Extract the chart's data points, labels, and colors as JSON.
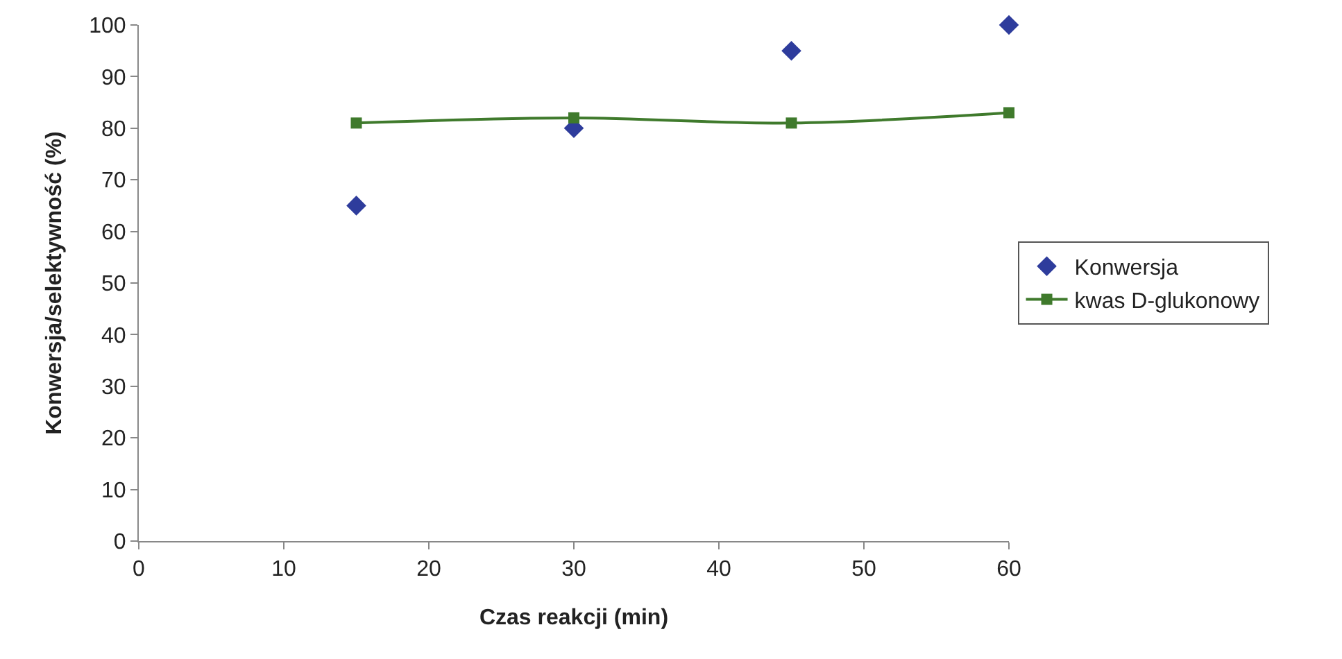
{
  "chart_data": {
    "type": "scatter",
    "xlabel": "Czas reakcji (min)",
    "ylabel": "Konwersja/selektywność (%)",
    "x": [
      15,
      30,
      45,
      60
    ],
    "series": [
      {
        "name": "Konwersja",
        "marker": "diamond",
        "color": "#2e3c9c",
        "values": [
          65,
          80,
          95,
          100
        ]
      },
      {
        "name": "kwas D-glukonowy",
        "type": "line",
        "marker": "square",
        "line_style": "solid",
        "color": "#3f7a2c",
        "values": [
          81,
          82,
          81,
          83
        ]
      }
    ],
    "xlim": [
      0,
      60
    ],
    "xticks": [
      0,
      10,
      20,
      30,
      40,
      50,
      60
    ],
    "ylim": [
      0,
      100
    ],
    "yticks": [
      0,
      10,
      20,
      30,
      40,
      50,
      60,
      70,
      80,
      90,
      100
    ],
    "grid": false,
    "legend": "right"
  }
}
